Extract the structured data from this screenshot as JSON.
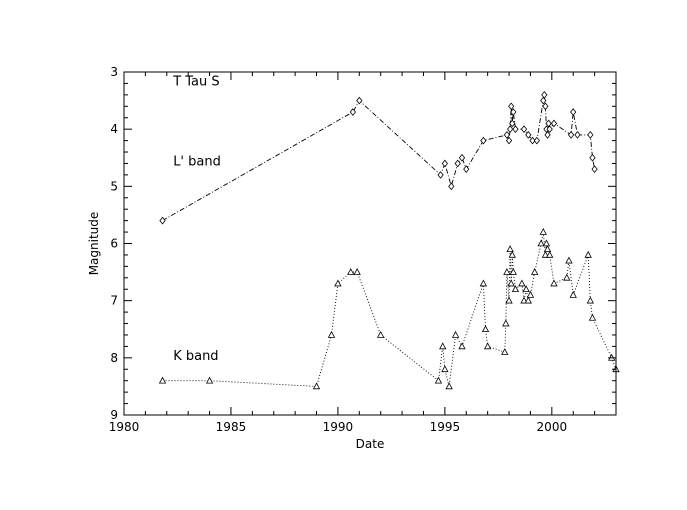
{
  "chart_data": {
    "type": "line",
    "xlabel": "Date",
    "ylabel": "Magnitude",
    "xlim": [
      1980,
      2003
    ],
    "ylim": [
      9,
      3
    ],
    "y_inverted": true,
    "x_ticks": [
      1980,
      1985,
      1990,
      1995,
      2000
    ],
    "y_ticks": [
      3,
      4,
      5,
      6,
      7,
      8,
      9
    ],
    "grid": false,
    "annotations": [
      {
        "text": "T Tau S",
        "x": 1982.3,
        "y": 3.15
      },
      {
        "text": "L' band",
        "x": 1982.3,
        "y": 4.55
      },
      {
        "text": "K band",
        "x": 1982.3,
        "y": 7.95
      }
    ],
    "series": [
      {
        "marker": "diamond",
        "linestyle": "dashdot",
        "x": [
          1981.8,
          1990.7,
          1991.0,
          1994.8,
          1995.0,
          1995.3,
          1995.6,
          1995.8,
          1996.0,
          1996.8,
          1997.9,
          1998.0,
          1998.05,
          1998.1,
          1998.15,
          1998.2,
          1998.3,
          1998.7,
          1998.9,
          1999.1,
          1999.3,
          1999.6,
          1999.65,
          1999.7,
          1999.75,
          1999.8,
          1999.85,
          1999.9,
          2000.1,
          2000.9,
          2001.0,
          2001.2,
          2001.8,
          2001.9,
          2002.0
        ],
        "y": [
          5.6,
          3.7,
          3.5,
          4.8,
          4.6,
          5.0,
          4.6,
          4.5,
          4.7,
          4.2,
          4.1,
          4.2,
          4.0,
          3.6,
          3.9,
          3.7,
          4.0,
          4.0,
          4.1,
          4.2,
          4.2,
          3.5,
          3.4,
          3.6,
          4.0,
          4.1,
          3.9,
          4.0,
          3.9,
          4.1,
          3.7,
          4.1,
          4.1,
          4.5,
          4.7
        ]
      },
      {
        "marker": "triangle",
        "linestyle": "dotted",
        "x": [
          1981.8,
          1984.0,
          1989.0,
          1989.7,
          1990.0,
          1990.6,
          1990.9,
          1992.0,
          1994.7,
          1994.9,
          1995.0,
          1995.2,
          1995.5,
          1995.8,
          1996.8,
          1996.9,
          1997.0,
          1997.8,
          1997.85,
          1997.9,
          1998.0,
          1998.05,
          1998.1,
          1998.15,
          1998.2,
          1998.3,
          1998.6,
          1998.7,
          1998.8,
          1998.9,
          1999.0,
          1999.2,
          1999.5,
          1999.6,
          1999.7,
          1999.75,
          1999.8,
          1999.9,
          2000.1,
          2000.7,
          2000.8,
          2001.0,
          2001.7,
          2001.8,
          2001.9,
          2002.8,
          2003.0
        ],
        "y": [
          8.4,
          8.4,
          8.5,
          7.6,
          6.7,
          6.5,
          6.5,
          7.6,
          8.4,
          7.8,
          8.2,
          8.5,
          7.6,
          7.8,
          6.7,
          7.5,
          7.8,
          7.9,
          7.4,
          6.5,
          7.0,
          6.1,
          6.7,
          6.2,
          6.5,
          6.8,
          6.7,
          7.0,
          6.8,
          7.0,
          6.9,
          6.5,
          6.0,
          5.8,
          6.2,
          6.0,
          6.1,
          6.2,
          6.7,
          6.6,
          6.3,
          6.9,
          6.2,
          7.0,
          7.3,
          8.0,
          8.2
        ]
      }
    ]
  }
}
